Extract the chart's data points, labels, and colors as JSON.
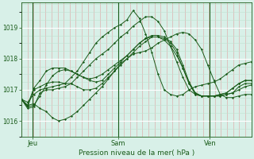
{
  "title": "",
  "xlabel": "Pression niveau de la mer( hPa )",
  "bg_color": "#d8f0e8",
  "line_color": "#1a5c1a",
  "tick_color": "#1a5c1a",
  "label_color": "#1a5c1a",
  "ylim": [
    1015.5,
    1019.8
  ],
  "yticks": [
    1016,
    1017,
    1018,
    1019
  ],
  "xtick_labels": [
    "Jeu",
    "Sam",
    "Ven"
  ],
  "xtick_positions": [
    0.05,
    0.42,
    0.82
  ],
  "vline_positions": [
    0.05,
    0.42,
    0.82
  ],
  "n_points": 38,
  "series": [
    [
      1016.7,
      1016.6,
      1016.85,
      1017.0,
      1017.05,
      1017.1,
      1017.15,
      1017.2,
      1017.4,
      1017.6,
      1017.9,
      1018.2,
      1018.5,
      1018.7,
      1018.85,
      1019.0,
      1019.1,
      1019.25,
      1019.55,
      1019.3,
      1018.8,
      1018.2,
      1017.5,
      1017.0,
      1016.85,
      1016.8,
      1016.85,
      1017.0,
      1017.1,
      1017.15,
      1017.2,
      1017.25,
      1017.35,
      1017.5,
      1017.65,
      1017.8,
      1017.85,
      1017.9
    ],
    [
      1016.7,
      1016.5,
      1016.55,
      1016.4,
      1016.3,
      1016.1,
      1016.0,
      1016.05,
      1016.15,
      1016.3,
      1016.5,
      1016.7,
      1016.9,
      1017.1,
      1017.35,
      1017.6,
      1017.85,
      1018.0,
      1018.15,
      1018.2,
      1018.25,
      1018.35,
      1018.5,
      1018.6,
      1018.7,
      1018.8,
      1018.85,
      1018.8,
      1018.6,
      1018.3,
      1017.8,
      1017.3,
      1016.85,
      1016.75,
      1016.75,
      1016.8,
      1016.85,
      1016.85
    ],
    [
      1016.7,
      1016.4,
      1016.45,
      1016.9,
      1017.0,
      1017.0,
      1017.05,
      1017.1,
      1017.2,
      1017.4,
      1017.6,
      1017.8,
      1018.0,
      1018.15,
      1018.3,
      1018.5,
      1018.7,
      1018.85,
      1019.05,
      1019.2,
      1019.35,
      1019.35,
      1019.2,
      1018.9,
      1018.4,
      1017.9,
      1017.4,
      1017.0,
      1016.85,
      1016.8,
      1016.8,
      1016.8,
      1016.8,
      1016.85,
      1016.9,
      1017.0,
      1017.1,
      1017.15
    ],
    [
      1016.7,
      1016.45,
      1017.0,
      1017.1,
      1017.2,
      1017.25,
      1017.25,
      1017.2,
      1017.2,
      1017.1,
      1017.0,
      1017.0,
      1017.05,
      1017.2,
      1017.4,
      1017.6,
      1017.8,
      1018.0,
      1018.2,
      1018.4,
      1018.55,
      1018.7,
      1018.7,
      1018.6,
      1018.4,
      1018.1,
      1017.7,
      1017.2,
      1016.9,
      1016.8,
      1016.8,
      1016.8,
      1016.8,
      1016.85,
      1016.9,
      1017.1,
      1017.2,
      1017.2
    ],
    [
      1016.7,
      1016.45,
      1016.5,
      1016.8,
      1017.15,
      1017.45,
      1017.6,
      1017.65,
      1017.6,
      1017.5,
      1017.4,
      1017.3,
      1017.25,
      1017.3,
      1017.5,
      1017.7,
      1017.9,
      1018.1,
      1018.3,
      1018.5,
      1018.65,
      1018.7,
      1018.7,
      1018.65,
      1018.5,
      1018.2,
      1017.7,
      1017.2,
      1016.85,
      1016.8,
      1016.8,
      1016.8,
      1016.85,
      1016.9,
      1017.05,
      1017.2,
      1017.3,
      1017.3
    ],
    [
      1016.7,
      1016.5,
      1017.05,
      1017.3,
      1017.6,
      1017.7,
      1017.7,
      1017.7,
      1017.6,
      1017.5,
      1017.4,
      1017.35,
      1017.4,
      1017.5,
      1017.65,
      1017.8,
      1017.95,
      1018.1,
      1018.3,
      1018.5,
      1018.65,
      1018.75,
      1018.75,
      1018.7,
      1018.55,
      1018.3,
      1017.8,
      1017.25,
      1016.9,
      1016.8,
      1016.8,
      1016.8,
      1016.85,
      1016.9,
      1017.05,
      1017.2,
      1017.3,
      1017.3
    ]
  ]
}
